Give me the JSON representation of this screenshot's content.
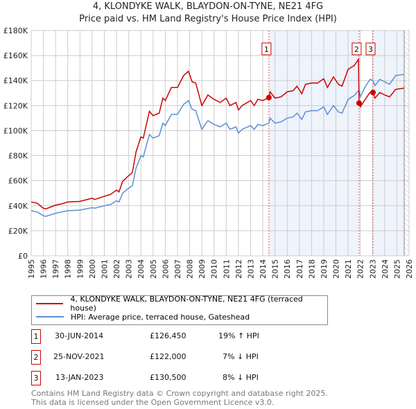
{
  "chart_data": {
    "type": "line",
    "title": "4, KLONDYKE WALK, BLAYDON-ON-TYNE, NE21 4FG",
    "subtitle": "Price paid vs. HM Land Registry's House Price Index (HPI)",
    "xlim": [
      1995,
      2026
    ],
    "ylim": [
      0,
      180000
    ],
    "yticks": [
      0,
      20000,
      40000,
      60000,
      80000,
      100000,
      120000,
      140000,
      160000,
      180000
    ],
    "ytick_labels": [
      "£0",
      "£20K",
      "£40K",
      "£60K",
      "£80K",
      "£100K",
      "£120K",
      "£140K",
      "£160K",
      "£180K"
    ],
    "xticks": [
      "1995",
      "1996",
      "1997",
      "1998",
      "1999",
      "2000",
      "2001",
      "2002",
      "2003",
      "2004",
      "2005",
      "2006",
      "2007",
      "2008",
      "2009",
      "2010",
      "2011",
      "2012",
      "2013",
      "2014",
      "2015",
      "2016",
      "2017",
      "2018",
      "2019",
      "2020",
      "2021",
      "2022",
      "2023",
      "2024",
      "2025",
      "2026"
    ],
    "grid": true,
    "series_names": [
      "4, KLONDYKE WALK, BLAYDON-ON-TYNE, NE21 4FG (terraced house)",
      "HPI: Average price, terraced house, Gateshead"
    ],
    "series_colors": [
      "#cc0000",
      "#5b8fd4"
    ],
    "points": [
      [
        1995,
        36,
        43
      ],
      [
        1995.5,
        35,
        42
      ],
      [
        1996,
        32,
        38
      ],
      [
        1996.2,
        31.5,
        37.5
      ],
      [
        1997,
        34,
        40.5
      ],
      [
        1997.5,
        35,
        41.5
      ],
      [
        1998,
        36,
        43
      ],
      [
        1999,
        36.5,
        43.5
      ],
      [
        2000,
        38.5,
        46
      ],
      [
        2000.2,
        38,
        45
      ],
      [
        2001,
        40,
        47.5
      ],
      [
        2001.5,
        41,
        49
      ],
      [
        2002,
        44,
        52.5
      ],
      [
        2002.2,
        43,
        51
      ],
      [
        2002.5,
        50,
        59.5
      ],
      [
        2003,
        54,
        64
      ],
      [
        2003.3,
        56,
        66.5
      ],
      [
        2003.6,
        70,
        83
      ],
      [
        2004,
        80,
        95
      ],
      [
        2004.2,
        79,
        94
      ],
      [
        2004.5,
        90,
        107
      ],
      [
        2004.7,
        97,
        115.5
      ],
      [
        2005,
        94,
        112
      ],
      [
        2005.5,
        96,
        114
      ],
      [
        2005.8,
        106,
        126
      ],
      [
        2006,
        104,
        124
      ],
      [
        2006.5,
        113,
        134.5
      ],
      [
        2007,
        113,
        134.5
      ],
      [
        2007.5,
        121,
        144
      ],
      [
        2007.9,
        124,
        147.5
      ],
      [
        2008.2,
        117,
        139
      ],
      [
        2008.5,
        116,
        138
      ],
      [
        2009,
        101,
        120
      ],
      [
        2009.5,
        108,
        128.5
      ],
      [
        2010,
        105,
        125
      ],
      [
        2010.5,
        103,
        122.5
      ],
      [
        2011,
        106,
        126
      ],
      [
        2011.3,
        101,
        120
      ],
      [
        2011.8,
        103,
        122.5
      ],
      [
        2012,
        98,
        116.5
      ],
      [
        2012.3,
        101,
        120
      ],
      [
        2013,
        104,
        124
      ],
      [
        2013.3,
        101,
        120
      ],
      [
        2013.6,
        105,
        125
      ],
      [
        2014,
        104,
        124
      ],
      [
        2014.5,
        106,
        126.5
      ],
      [
        2014.6,
        110,
        131
      ],
      [
        2015,
        106,
        126
      ],
      [
        2015.5,
        107,
        127
      ],
      [
        2016,
        110,
        131
      ],
      [
        2016.5,
        111,
        132
      ],
      [
        2016.8,
        114,
        135.5
      ],
      [
        2017.2,
        109,
        129.5
      ],
      [
        2017.5,
        115,
        137
      ],
      [
        2018,
        116,
        138
      ],
      [
        2018.5,
        116,
        138
      ],
      [
        2019,
        119,
        141.5
      ],
      [
        2019.3,
        113,
        134.5
      ],
      [
        2019.8,
        120,
        143
      ],
      [
        2020.2,
        115,
        137
      ],
      [
        2020.5,
        114,
        135.5
      ],
      [
        2021,
        125,
        149
      ],
      [
        2021.5,
        128,
        152
      ],
      [
        2021.85,
        132,
        157
      ],
      [
        2021.9,
        132,
        122
      ],
      [
        2022,
        127,
        119
      ],
      [
        2022.4,
        135,
        125
      ],
      [
        2022.8,
        141,
        130.5
      ],
      [
        2023.04,
        140,
        130.5
      ],
      [
        2023.2,
        136,
        126
      ],
      [
        2023.6,
        141,
        130.5
      ],
      [
        2024,
        139,
        128.5
      ],
      [
        2024.4,
        137,
        127
      ],
      [
        2024.9,
        144,
        133
      ],
      [
        2025.6,
        145,
        134
      ]
    ],
    "sales": [
      {
        "label": "1",
        "x": 2014.5,
        "price": 126450
      },
      {
        "label": "2",
        "x": 2021.9,
        "price": 122000
      },
      {
        "label": "3",
        "x": 2023.04,
        "price": 130500
      }
    ],
    "shaded_ranges": [
      [
        2014.5,
        2021.9
      ],
      [
        2023.04,
        2025.6
      ]
    ],
    "hatched_range": [
      2025.6,
      2026
    ]
  },
  "legend": {
    "property": "4, KLONDYKE WALK, BLAYDON-ON-TYNE, NE21 4FG (terraced house)",
    "hpi": "HPI: Average price, terraced house, Gateshead"
  },
  "table": [
    {
      "num": "1",
      "date": "30-JUN-2014",
      "price": "£126,450",
      "hpi": "19% ↑ HPI"
    },
    {
      "num": "2",
      "date": "25-NOV-2021",
      "price": "£122,000",
      "hpi": "7% ↓ HPI"
    },
    {
      "num": "3",
      "date": "13-JAN-2023",
      "price": "£130,500",
      "hpi": "8% ↓ HPI"
    }
  ],
  "footer": {
    "line1": "Contains HM Land Registry data © Crown copyright and database right 2025.",
    "line2": "This data is licensed under the Open Government Licence v3.0."
  }
}
